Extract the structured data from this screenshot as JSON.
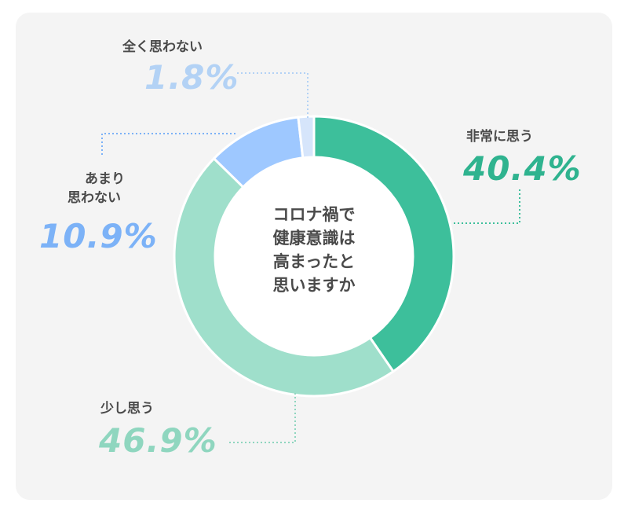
{
  "chart_data": {
    "type": "pie",
    "title": "コロナ禍で健康意識は高まったと思いますか",
    "title_lines": [
      "コロナ禍で",
      "健康意識は",
      "高まったと",
      "思いますか"
    ],
    "unit": "%",
    "slices": [
      {
        "label": "非常に思う",
        "value": 40.4,
        "display": "40.4%",
        "color": "#3dbf9b",
        "text_color": "#2fb38f"
      },
      {
        "label": "少し思う",
        "value": 46.9,
        "display": "46.9%",
        "color": "#9fdfcb",
        "text_color": "#8fd6bf"
      },
      {
        "label": "あまり\n思わない",
        "label_lines": [
          "あまり",
          "思わない"
        ],
        "value": 10.9,
        "display": "10.9%",
        "color": "#9ec8ff",
        "text_color": "#7cb2f7"
      },
      {
        "label": "全く思わない",
        "value": 1.8,
        "display": "1.8%",
        "color": "#d6e5fb",
        "text_color": "#b3d2f5"
      }
    ]
  }
}
